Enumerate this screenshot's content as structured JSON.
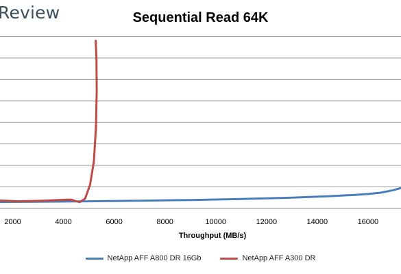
{
  "brand": {
    "text": "Review"
  },
  "chart_data": {
    "type": "line",
    "title": "Sequential Read 64K",
    "xlabel": "Throughput (MB/s)",
    "ylabel": "",
    "xlim": [
      1500,
      17300
    ],
    "ylim": [
      0,
      9
    ],
    "x_ticks": [
      2000,
      4000,
      6000,
      8000,
      10000,
      12000,
      14000,
      16000
    ],
    "gridlines_y": [
      1,
      2,
      3,
      4,
      5,
      6,
      7,
      8
    ],
    "legend_position": "bottom",
    "series": [
      {
        "name": "NetApp AFF A800 DR 16Gb",
        "color": "#4a7ebb",
        "x": [
          1500,
          3000,
          5000,
          7000,
          9000,
          11000,
          13000,
          14500,
          15500,
          16000,
          16500,
          17000,
          17300
        ],
        "y": [
          0.3,
          0.31,
          0.33,
          0.36,
          0.39,
          0.44,
          0.5,
          0.57,
          0.63,
          0.67,
          0.73,
          0.85,
          0.95
        ]
      },
      {
        "name": "NetApp AFF A300 DR",
        "color": "#be4b48",
        "x": [
          1500,
          2200,
          3200,
          4000,
          4300,
          4500,
          4650,
          4850,
          5050,
          5200,
          5280,
          5310,
          5300,
          5270
        ],
        "y": [
          0.37,
          0.33,
          0.36,
          0.4,
          0.41,
          0.33,
          0.3,
          0.45,
          1.1,
          2.2,
          3.8,
          5.5,
          7.0,
          7.8
        ]
      }
    ]
  }
}
